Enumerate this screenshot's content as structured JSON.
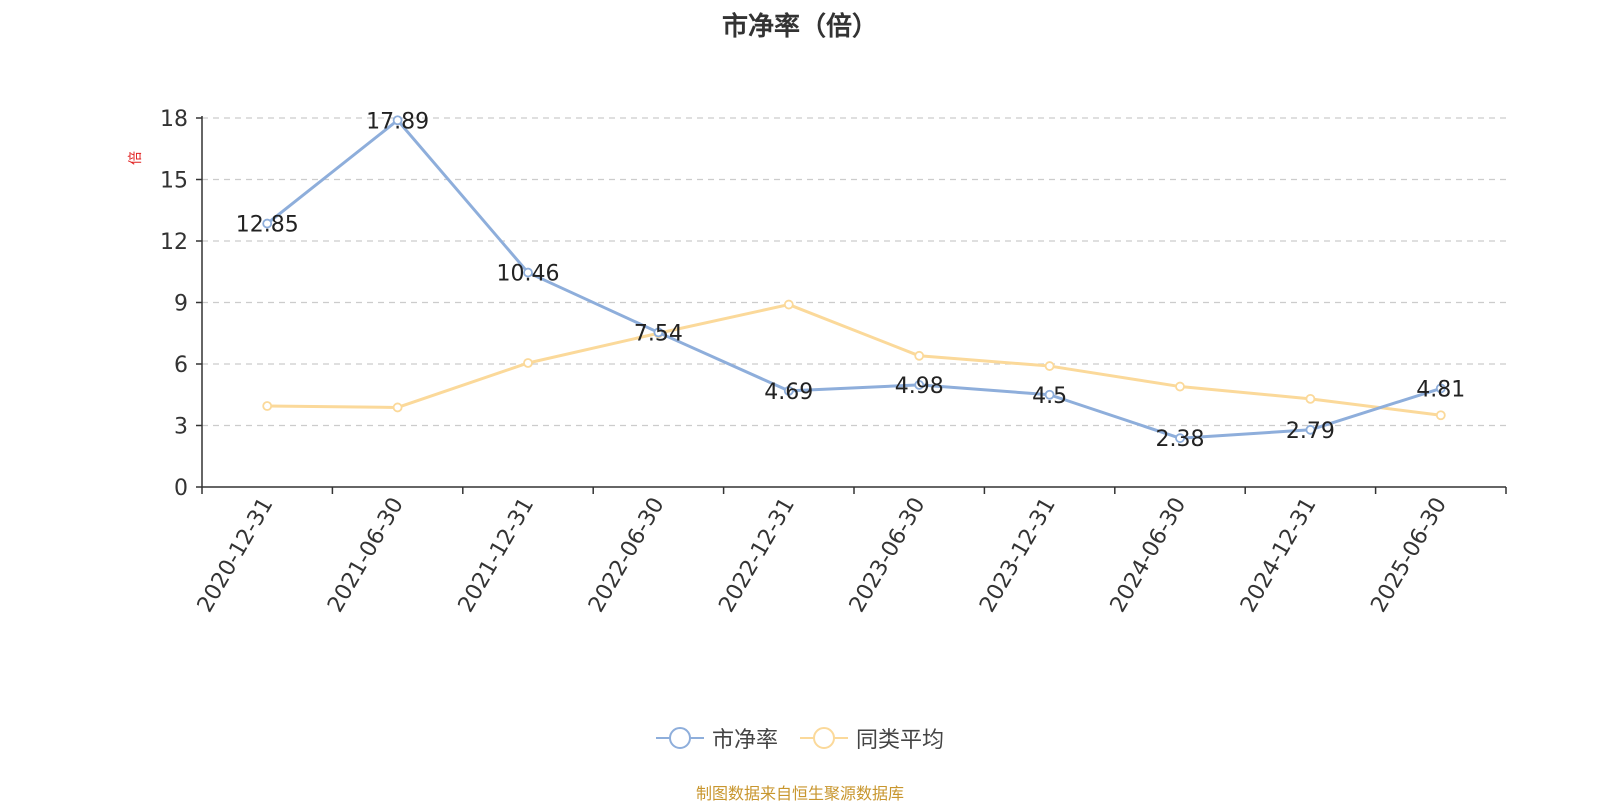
{
  "chart_data": {
    "type": "line",
    "title": "市净率（倍）",
    "ylabel": "倍",
    "xlabel": "",
    "ylim": [
      0,
      18
    ],
    "yticks": [
      0,
      3,
      6,
      9,
      12,
      15,
      18
    ],
    "grid": true,
    "legend_position": "bottom",
    "categories": [
      "2020-12-31",
      "2021-06-30",
      "2021-12-31",
      "2022-06-30",
      "2022-12-31",
      "2023-06-30",
      "2023-12-31",
      "2024-06-30",
      "2024-12-31",
      "2025-06-30"
    ],
    "series": [
      {
        "name": "市净率",
        "color": "#8eaedb",
        "show_labels": true,
        "values": [
          12.85,
          17.89,
          10.46,
          7.54,
          4.69,
          4.98,
          4.5,
          2.38,
          2.79,
          4.81
        ]
      },
      {
        "name": "同类平均",
        "color": "#fbd99a",
        "show_labels": false,
        "values": [
          3.95,
          3.88,
          6.05,
          7.5,
          8.9,
          6.4,
          5.9,
          4.9,
          4.3,
          3.5
        ]
      }
    ],
    "source": "制图数据来自恒生聚源数据库"
  }
}
